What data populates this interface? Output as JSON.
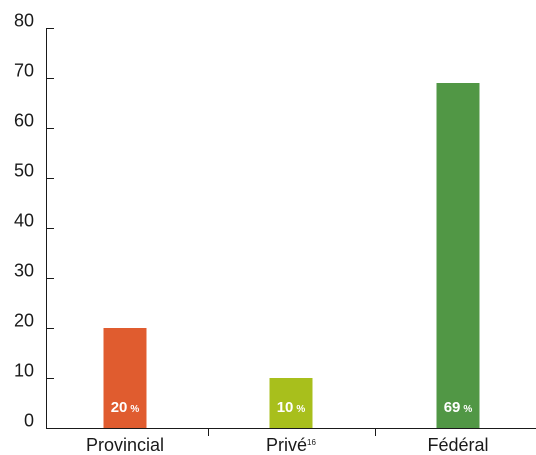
{
  "chart_data": {
    "type": "bar",
    "title": "",
    "xlabel": "",
    "ylabel": "",
    "ylim": [
      0,
      80
    ],
    "yticks": [
      0,
      10,
      20,
      30,
      40,
      50,
      60,
      70,
      80
    ],
    "grid": false,
    "legend": "none",
    "categories": [
      "Provincial",
      "Privé",
      "Fédéral"
    ],
    "category_superscripts": [
      "",
      "16",
      ""
    ],
    "values": [
      20,
      10,
      69
    ],
    "data_labels": [
      "20",
      "10",
      "69"
    ],
    "data_label_unit": "%",
    "colors": [
      "#e05c2f",
      "#a8bf1c",
      "#519745"
    ]
  }
}
